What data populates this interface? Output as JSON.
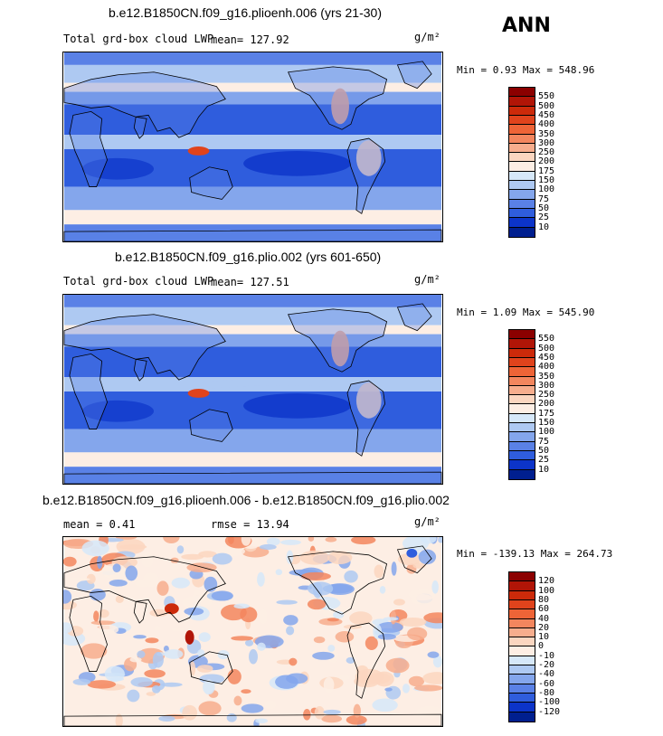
{
  "season": "ANN",
  "units": "g/m²",
  "panels": [
    {
      "title": "b.e12.B1850CN.f09_g16.plioenh.006 (yrs 21-30)",
      "left_label": "Total grd-box cloud LWP",
      "stat_label": "mean=",
      "stat_value": "127.92",
      "minmax": "Min =   0.93 Max = 548.96",
      "colorbar": {
        "levels": [
          "550",
          "500",
          "450",
          "400",
          "350",
          "300",
          "250",
          "200",
          "175",
          "150",
          "100",
          "75",
          "50",
          "25",
          "10"
        ],
        "colors": [
          "#8b0000",
          "#b11507",
          "#cc2a0a",
          "#e0431c",
          "#ee6437",
          "#f3865e",
          "#f7ad8d",
          "#fbd6c0",
          "#fdeee4",
          "#d6e8f9",
          "#aec9f2",
          "#84a6ec",
          "#5a81e6",
          "#2f5ddd",
          "#0c34c9",
          "#001f8f"
        ]
      }
    },
    {
      "title": "b.e12.B1850CN.f09_g16.plio.002 (yrs 601-650)",
      "left_label": "Total grd-box cloud LWP",
      "stat_label": "mean=",
      "stat_value": "127.51",
      "minmax": "Min =   1.09 Max = 545.90",
      "colorbar": {
        "levels": [
          "550",
          "500",
          "450",
          "400",
          "350",
          "300",
          "250",
          "200",
          "175",
          "150",
          "100",
          "75",
          "50",
          "25",
          "10"
        ],
        "colors": [
          "#8b0000",
          "#b11507",
          "#cc2a0a",
          "#e0431c",
          "#ee6437",
          "#f3865e",
          "#f7ad8d",
          "#fbd6c0",
          "#fdeee4",
          "#d6e8f9",
          "#aec9f2",
          "#84a6ec",
          "#5a81e6",
          "#2f5ddd",
          "#0c34c9",
          "#001f8f"
        ]
      }
    },
    {
      "title": "b.e12.B1850CN.f09_g16.plioenh.006 - b.e12.B1850CN.f09_g16.plio.002",
      "left_label": "mean =   0.41",
      "stat_label": "rmse =",
      "stat_value": "13.94",
      "minmax": "Min = -139.13 Max = 264.73",
      "colorbar": {
        "levels": [
          "120",
          "100",
          "80",
          "60",
          "40",
          "20",
          "10",
          "0",
          "-10",
          "-20",
          "-40",
          "-60",
          "-80",
          "-100",
          "-120"
        ],
        "colors": [
          "#8b0000",
          "#b11507",
          "#cc2a0a",
          "#e0431c",
          "#ee6437",
          "#f3865e",
          "#f7ad8d",
          "#fbd6c0",
          "#fdeee4",
          "#d6e8f9",
          "#aec9f2",
          "#84a6ec",
          "#5a81e6",
          "#2f5ddd",
          "#0c34c9",
          "#001f8f"
        ]
      }
    }
  ],
  "chart_data": {
    "type": "heatmap",
    "description_values": "Global annual-mean maps of total grid-box cloud liquid water path for two model runs and their difference",
    "series": [
      {
        "mean": 127.92,
        "min": 0.93,
        "max": 548.96
      },
      {
        "mean": 127.51,
        "min": 1.09,
        "max": 545.9
      },
      {
        "mean": 0.41,
        "rmse": 13.94,
        "min": -139.13,
        "max": 264.73
      }
    ]
  }
}
